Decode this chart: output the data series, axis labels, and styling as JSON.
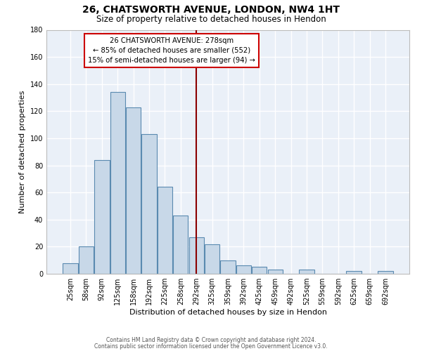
{
  "title": "26, CHATSWORTH AVENUE, LONDON, NW4 1HT",
  "subtitle": "Size of property relative to detached houses in Hendon",
  "xlabel": "Distribution of detached houses by size in Hendon",
  "ylabel": "Number of detached properties",
  "categories": [
    "25sqm",
    "58sqm",
    "92sqm",
    "125sqm",
    "158sqm",
    "192sqm",
    "225sqm",
    "258sqm",
    "292sqm",
    "325sqm",
    "359sqm",
    "392sqm",
    "425sqm",
    "459sqm",
    "492sqm",
    "525sqm",
    "559sqm",
    "592sqm",
    "625sqm",
    "659sqm",
    "692sqm"
  ],
  "values": [
    8,
    20,
    84,
    134,
    123,
    103,
    64,
    43,
    27,
    22,
    10,
    6,
    5,
    3,
    0,
    3,
    0,
    0,
    2,
    0,
    2
  ],
  "bar_color": "#c8d8e8",
  "bar_edge_color": "#5a8ab0",
  "property_line_x": 8.0,
  "property_label": "26 CHATSWORTH AVENUE: 278sqm",
  "annotation_line1": "← 85% of detached houses are smaller (552)",
  "annotation_line2": "15% of semi-detached houses are larger (94) →",
  "annotation_box_color": "white",
  "annotation_border_color": "#cc0000",
  "vline_color": "#8b0000",
  "ylim": [
    0,
    180
  ],
  "yticks": [
    0,
    20,
    40,
    60,
    80,
    100,
    120,
    140,
    160,
    180
  ],
  "background_color": "#eaf0f8",
  "grid_color": "white",
  "footnote1": "Contains HM Land Registry data © Crown copyright and database right 2024.",
  "footnote2": "Contains public sector information licensed under the Open Government Licence v3.0."
}
